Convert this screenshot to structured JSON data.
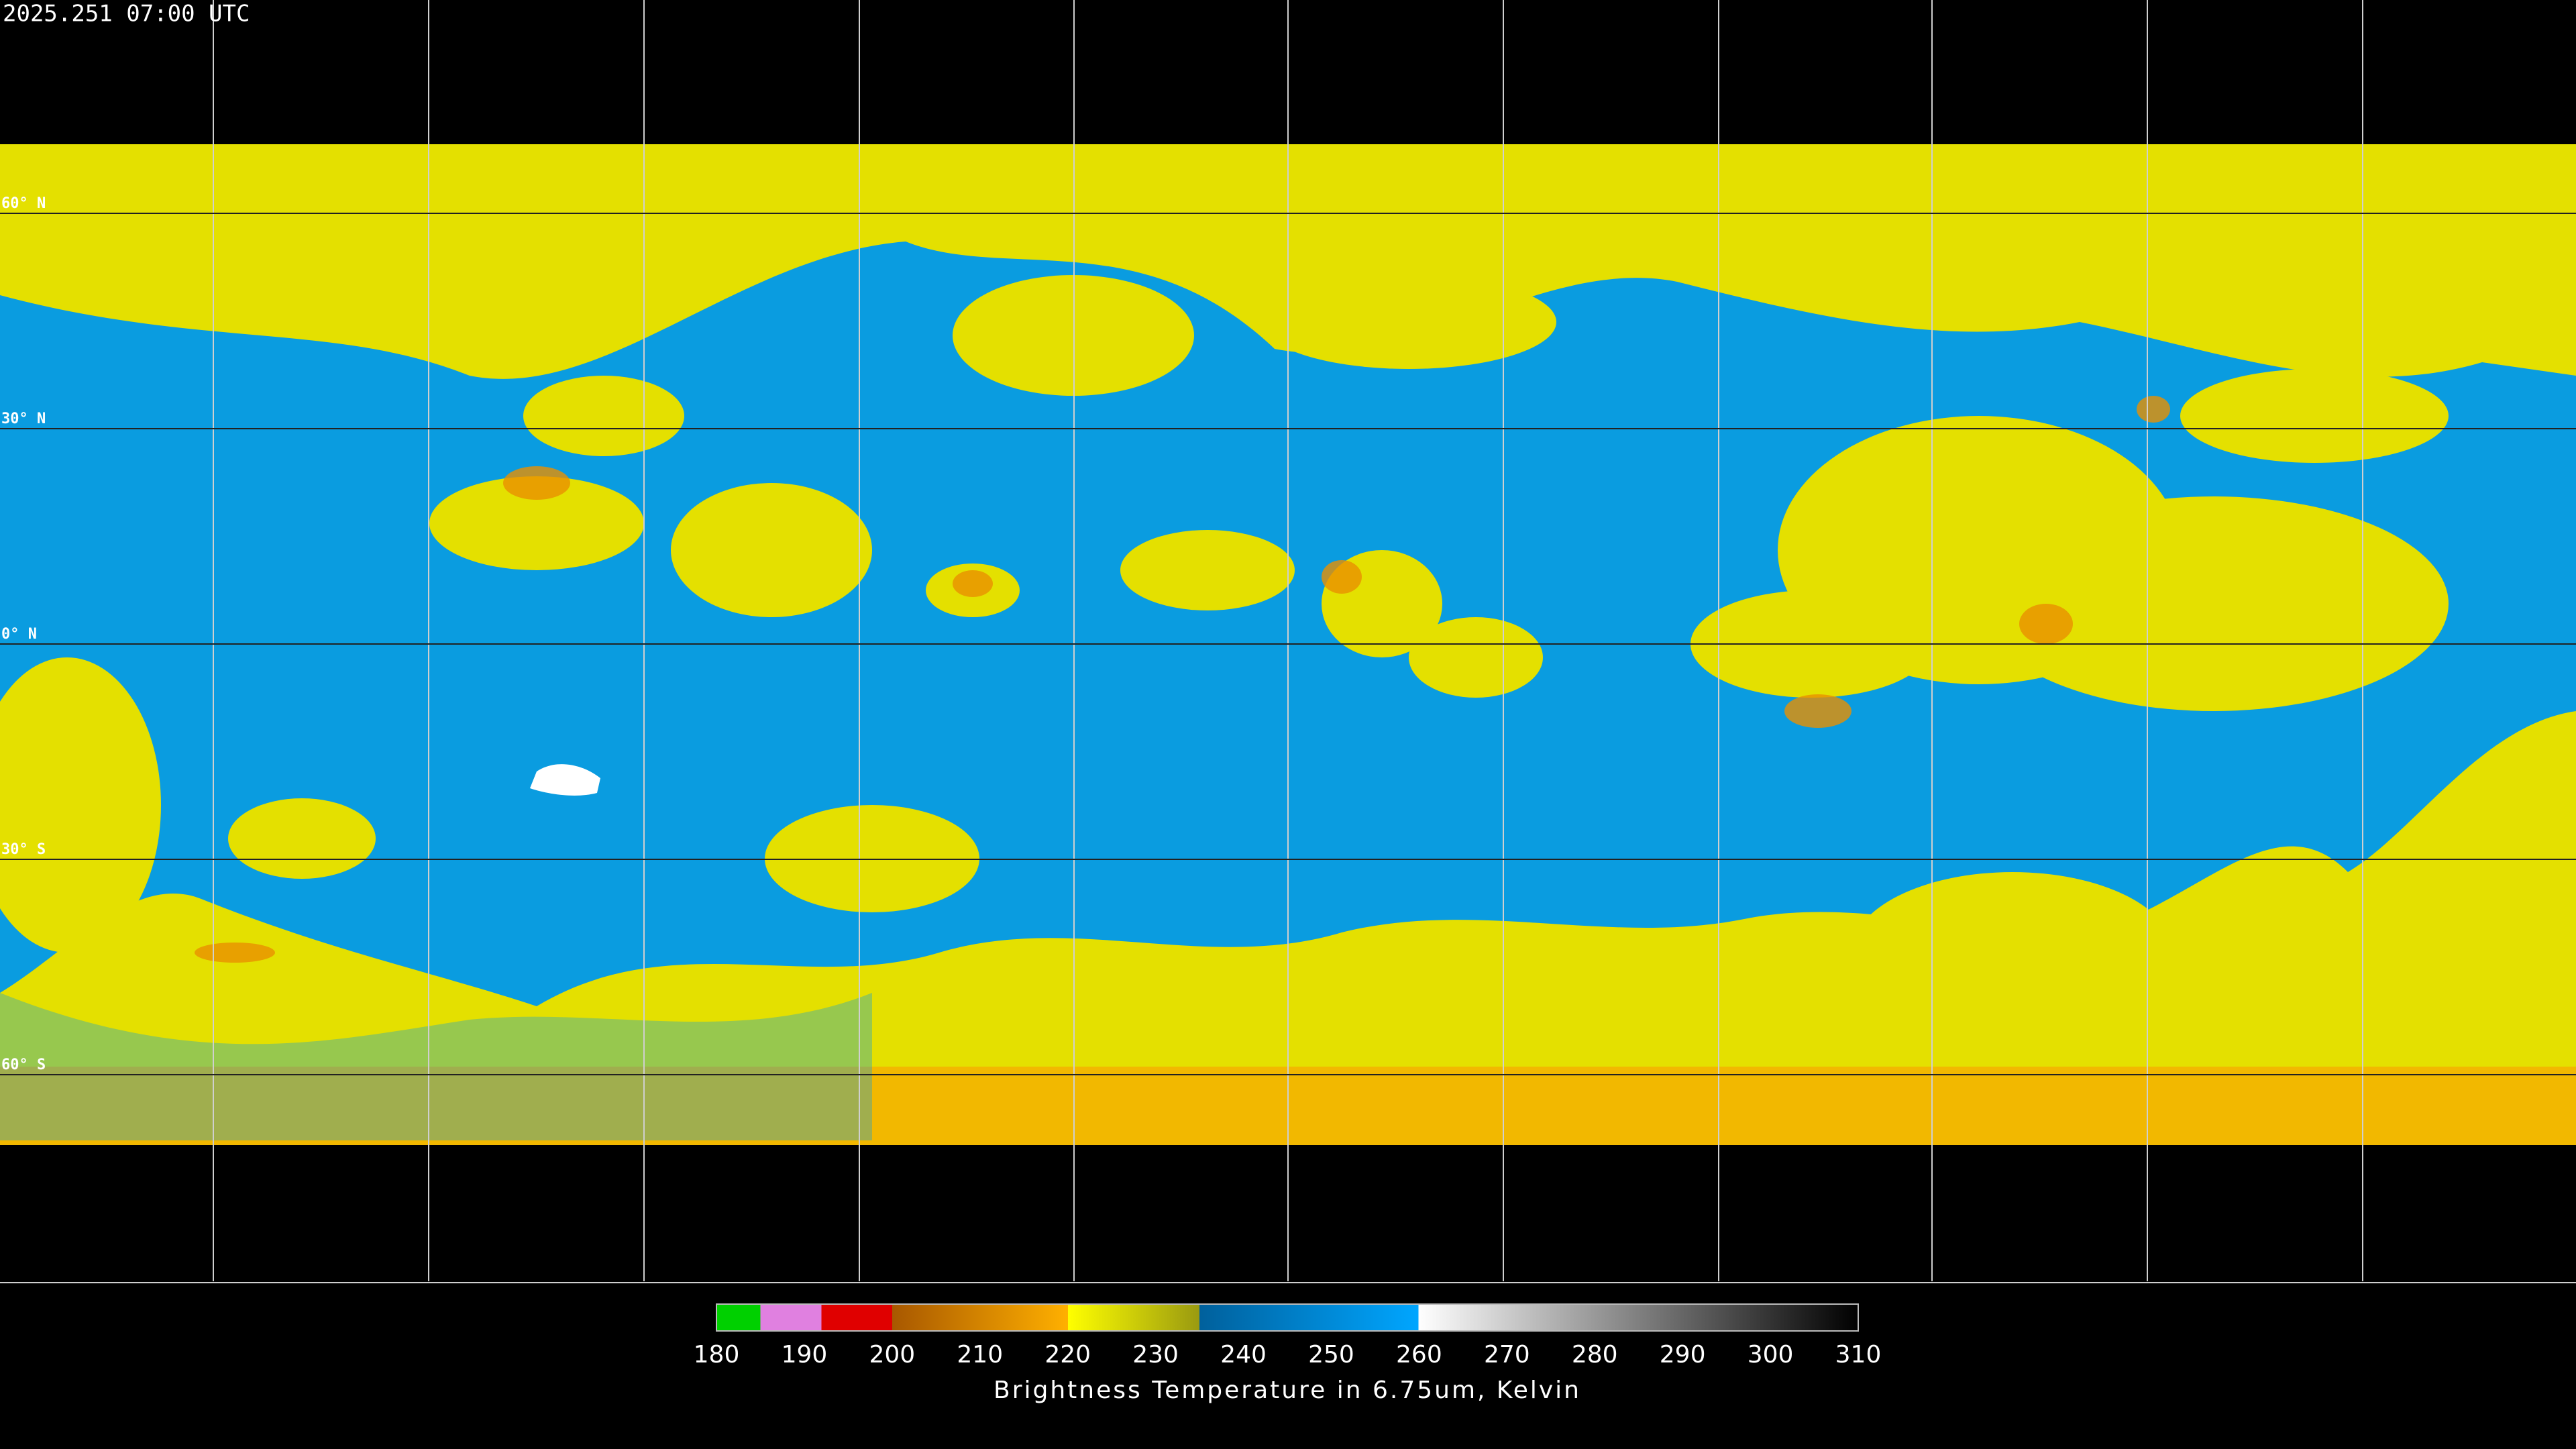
{
  "header": {
    "timestamp": "2025.251 07:00 UTC"
  },
  "map": {
    "latitudes": [
      {
        "value": 60,
        "label": "60° N"
      },
      {
        "value": 30,
        "label": "30° N"
      },
      {
        "value": 0,
        "label": "0° N"
      },
      {
        "value": -30,
        "label": "30° S"
      },
      {
        "value": -60,
        "label": "60° S"
      }
    ]
  },
  "colorbar": {
    "label": "Brightness Temperature in 6.75um, Kelvin",
    "lim": [
      180,
      310
    ],
    "ticks": [
      180,
      190,
      200,
      210,
      220,
      230,
      240,
      250,
      260,
      270,
      280,
      290,
      300,
      310
    ]
  }
}
